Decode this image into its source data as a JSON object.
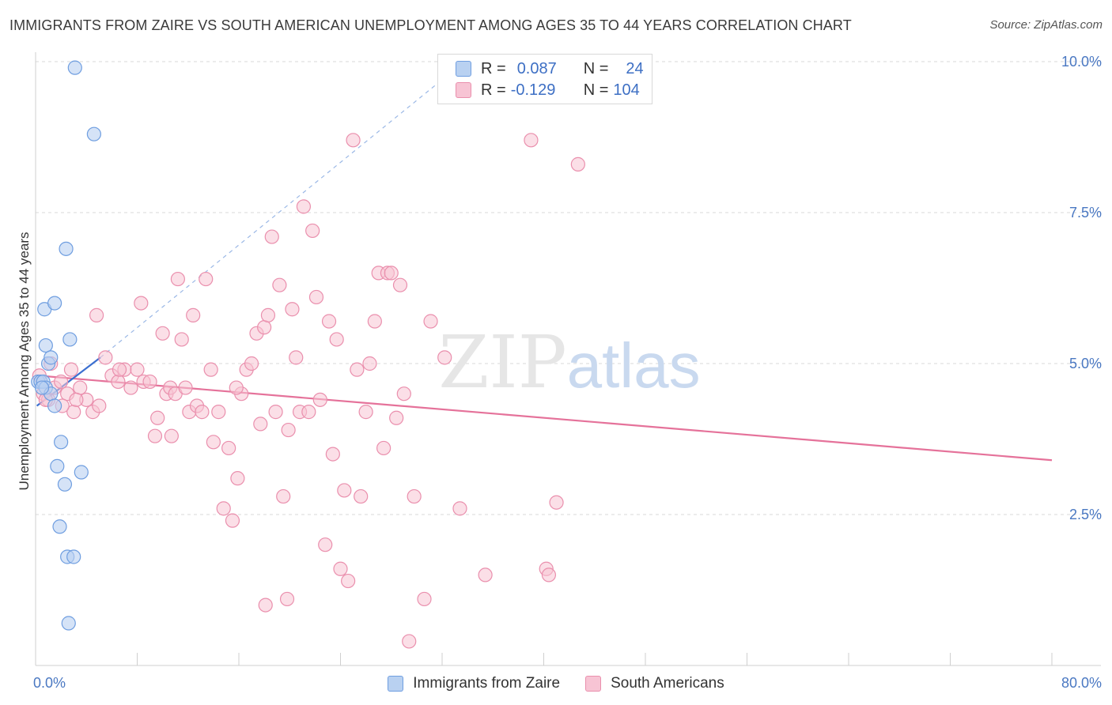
{
  "header": {
    "title": "IMMIGRANTS FROM ZAIRE VS SOUTH AMERICAN UNEMPLOYMENT AMONG AGES 35 TO 44 YEARS CORRELATION CHART",
    "source": "Source: ZipAtlas.com"
  },
  "watermark": "ZIPatlas",
  "legend": {
    "series1": {
      "r_label": "R =",
      "r_value": "0.087",
      "n_label": "N =",
      "n_value": "24"
    },
    "series2": {
      "r_label": "R =",
      "r_value": "-0.129",
      "n_label": "N =",
      "n_value": "104"
    }
  },
  "bottom_legend": {
    "series1": "Immigrants from Zaire",
    "series2": "South Americans"
  },
  "colors": {
    "blue_fill": "#b9d1f1",
    "blue_stroke": "#6f9ee0",
    "blue_line": "#3b6fd0",
    "pink_fill": "#f7c4d4",
    "pink_stroke": "#ea8fad",
    "pink_line": "#e5729a",
    "grid": "#d9d9d9",
    "tick_text": "#4a78c2"
  },
  "chart_data": {
    "type": "scatter",
    "title": "IMMIGRANTS FROM ZAIRE VS SOUTH AMERICAN UNEMPLOYMENT AMONG AGES 35 TO 44 YEARS CORRELATION CHART",
    "xlabel": "",
    "ylabel": "Unemployment Among Ages 35 to 44 years",
    "xlim": [
      0,
      80
    ],
    "ylim": [
      0,
      10
    ],
    "x_tick_labels": [
      "0.0%",
      "80.0%"
    ],
    "y_ticks": [
      2.5,
      5.0,
      7.5,
      10.0
    ],
    "y_tick_labels": [
      "2.5%",
      "5.0%",
      "7.5%",
      "10.0%"
    ],
    "grid": true,
    "series": [
      {
        "name": "Immigrants from Zaire",
        "color": "#6f9ee0",
        "R": 0.087,
        "N": 24,
        "trend": {
          "x0": 0.1,
          "y0": 4.3,
          "x1": 5.1,
          "y1": 5.1
        },
        "trend_dashed": {
          "x0": 5.1,
          "y0": 5.1,
          "x1": 32.0,
          "y1": 9.7
        },
        "points": [
          [
            0.2,
            4.7
          ],
          [
            0.4,
            4.7
          ],
          [
            0.6,
            4.7
          ],
          [
            0.8,
            4.6
          ],
          [
            1.2,
            4.5
          ],
          [
            1.0,
            5.0
          ],
          [
            0.8,
            5.3
          ],
          [
            1.2,
            5.1
          ],
          [
            1.5,
            4.3
          ],
          [
            2.7,
            5.4
          ],
          [
            0.7,
            5.9
          ],
          [
            1.5,
            6.0
          ],
          [
            2.4,
            6.9
          ],
          [
            4.6,
            8.8
          ],
          [
            3.1,
            9.9
          ],
          [
            2.0,
            3.7
          ],
          [
            1.7,
            3.3
          ],
          [
            3.6,
            3.2
          ],
          [
            2.3,
            3.0
          ],
          [
            1.9,
            2.3
          ],
          [
            2.5,
            1.8
          ],
          [
            3.0,
            1.8
          ],
          [
            2.6,
            0.7
          ],
          [
            0.5,
            4.6
          ]
        ]
      },
      {
        "name": "South Americans",
        "color": "#ea8fad",
        "R": -0.129,
        "N": 104,
        "trend": {
          "x0": 0.2,
          "y0": 4.8,
          "x1": 80.0,
          "y1": 3.4
        },
        "points": [
          [
            0.3,
            4.8
          ],
          [
            0.6,
            4.5
          ],
          [
            1.0,
            4.4
          ],
          [
            1.5,
            4.6
          ],
          [
            2.0,
            4.7
          ],
          [
            2.5,
            4.5
          ],
          [
            2.8,
            4.9
          ],
          [
            3.0,
            4.2
          ],
          [
            3.5,
            4.6
          ],
          [
            4.0,
            4.4
          ],
          [
            4.5,
            4.2
          ],
          [
            5.0,
            4.3
          ],
          [
            5.5,
            5.1
          ],
          [
            6.0,
            4.8
          ],
          [
            6.5,
            4.7
          ],
          [
            7.0,
            4.9
          ],
          [
            7.5,
            4.6
          ],
          [
            8.0,
            4.9
          ],
          [
            8.5,
            4.7
          ],
          [
            9.0,
            4.7
          ],
          [
            3.2,
            4.4
          ],
          [
            4.8,
            5.8
          ],
          [
            8.3,
            6.0
          ],
          [
            9.6,
            4.1
          ],
          [
            10.0,
            5.5
          ],
          [
            10.3,
            4.5
          ],
          [
            10.6,
            4.6
          ],
          [
            11.0,
            4.5
          ],
          [
            11.5,
            5.4
          ],
          [
            11.8,
            4.6
          ],
          [
            12.1,
            4.2
          ],
          [
            12.4,
            5.8
          ],
          [
            12.7,
            4.3
          ],
          [
            13.1,
            4.2
          ],
          [
            10.7,
            3.8
          ],
          [
            9.4,
            3.8
          ],
          [
            11.2,
            6.4
          ],
          [
            13.4,
            6.4
          ],
          [
            13.8,
            4.9
          ],
          [
            14.0,
            3.7
          ],
          [
            14.4,
            4.2
          ],
          [
            14.8,
            2.6
          ],
          [
            15.2,
            3.6
          ],
          [
            15.5,
            2.4
          ],
          [
            15.9,
            3.1
          ],
          [
            16.2,
            4.5
          ],
          [
            16.6,
            4.9
          ],
          [
            17.0,
            5.0
          ],
          [
            17.4,
            5.5
          ],
          [
            17.7,
            4.0
          ],
          [
            18.0,
            5.6
          ],
          [
            18.3,
            5.8
          ],
          [
            18.6,
            7.1
          ],
          [
            18.9,
            4.2
          ],
          [
            19.2,
            6.3
          ],
          [
            19.5,
            2.8
          ],
          [
            19.9,
            3.9
          ],
          [
            20.2,
            5.9
          ],
          [
            20.5,
            5.1
          ],
          [
            20.8,
            4.2
          ],
          [
            21.1,
            7.6
          ],
          [
            21.5,
            4.2
          ],
          [
            21.8,
            7.2
          ],
          [
            22.1,
            6.1
          ],
          [
            22.4,
            4.4
          ],
          [
            22.8,
            2.0
          ],
          [
            23.1,
            5.7
          ],
          [
            23.4,
            3.5
          ],
          [
            23.7,
            5.4
          ],
          [
            24.0,
            1.6
          ],
          [
            24.3,
            2.9
          ],
          [
            24.6,
            1.4
          ],
          [
            25.0,
            8.7
          ],
          [
            25.3,
            4.9
          ],
          [
            25.6,
            2.8
          ],
          [
            26.0,
            4.2
          ],
          [
            26.3,
            5.0
          ],
          [
            26.7,
            5.7
          ],
          [
            27.0,
            6.5
          ],
          [
            27.4,
            3.6
          ],
          [
            27.7,
            6.5
          ],
          [
            28.0,
            6.5
          ],
          [
            28.4,
            4.1
          ],
          [
            28.7,
            6.3
          ],
          [
            29.0,
            4.5
          ],
          [
            29.4,
            0.4
          ],
          [
            29.8,
            2.8
          ],
          [
            31.1,
            5.7
          ],
          [
            32.2,
            5.1
          ],
          [
            30.6,
            1.1
          ],
          [
            33.4,
            2.6
          ],
          [
            35.4,
            1.5
          ],
          [
            39.0,
            8.7
          ],
          [
            40.2,
            1.6
          ],
          [
            40.4,
            1.5
          ],
          [
            41.0,
            2.7
          ],
          [
            42.7,
            8.3
          ],
          [
            18.1,
            1.0
          ],
          [
            19.8,
            1.1
          ],
          [
            15.8,
            4.6
          ],
          [
            6.6,
            4.9
          ],
          [
            2.1,
            4.3
          ],
          [
            1.2,
            5.0
          ],
          [
            0.8,
            4.4
          ]
        ]
      }
    ]
  }
}
